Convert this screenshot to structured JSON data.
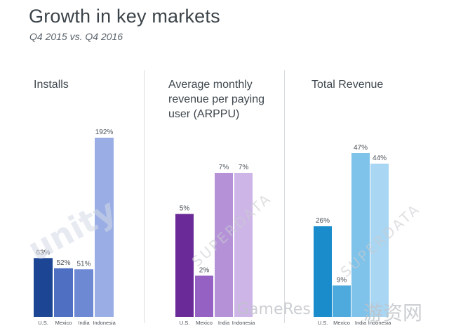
{
  "header": {
    "title": "Growth in key markets",
    "subtitle": "Q4 2015 vs. Q4 2016"
  },
  "watermarks": {
    "unity": "unity",
    "superdata": "SUPERDATA",
    "gameres": "GameRes",
    "youxi": "游资网"
  },
  "chart_data": [
    {
      "type": "bar",
      "title": "Installs",
      "categories": [
        "U.S.",
        "Mexico",
        "India",
        "Indonesia"
      ],
      "values": [
        63,
        52,
        51,
        192
      ],
      "value_labels": [
        "63%",
        "52%",
        "51%",
        "192%"
      ],
      "unit": "%",
      "colors": [
        "#1c4594",
        "#4f6fc2",
        "#6d89d4",
        "#9aaee5"
      ]
    },
    {
      "type": "bar",
      "title": "Average monthly revenue per paying user (ARPPU)",
      "title_lines": [
        "Average monthly",
        "revenue per paying",
        "user (ARPPU)"
      ],
      "categories": [
        "U.S.",
        "Mexico",
        "India",
        "Indonesia"
      ],
      "values": [
        5,
        2,
        7,
        7
      ],
      "value_labels": [
        "5%",
        "2%",
        "7%",
        "7%"
      ],
      "unit": "%",
      "colors": [
        "#6a2a97",
        "#9561c2",
        "#b592d8",
        "#cdb5e7"
      ]
    },
    {
      "type": "bar",
      "title": "Total Revenue",
      "categories": [
        "U.S.",
        "Mexico",
        "India",
        "Indonesia"
      ],
      "values": [
        26,
        9,
        47,
        44
      ],
      "value_labels": [
        "26%",
        "9%",
        "47%",
        "44%"
      ],
      "unit": "%",
      "colors": [
        "#1a8ccc",
        "#4ea9dd",
        "#7fc2ea",
        "#a9d6f2"
      ]
    }
  ]
}
